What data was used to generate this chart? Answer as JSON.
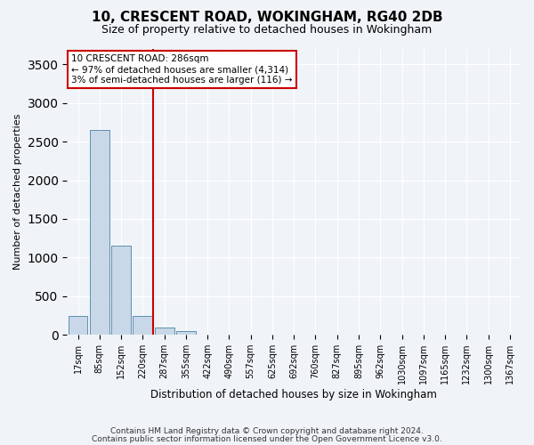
{
  "title_line1": "10, CRESCENT ROAD, WOKINGHAM, RG40 2DB",
  "title_line2": "Size of property relative to detached houses in Wokingham",
  "xlabel": "Distribution of detached houses by size in Wokingham",
  "ylabel": "Number of detached properties",
  "bin_labels": [
    "17sqm",
    "85sqm",
    "152sqm",
    "220sqm",
    "287sqm",
    "355sqm",
    "422sqm",
    "490sqm",
    "557sqm",
    "625sqm",
    "692sqm",
    "760sqm",
    "827sqm",
    "895sqm",
    "962sqm",
    "1030sqm",
    "1097sqm",
    "1165sqm",
    "1232sqm",
    "1300sqm",
    "1367sqm"
  ],
  "bar_heights": [
    250,
    2650,
    1150,
    250,
    100,
    50,
    5,
    0,
    0,
    0,
    0,
    0,
    0,
    0,
    0,
    0,
    0,
    0,
    0,
    0,
    0
  ],
  "bar_color": "#c8d8e8",
  "bar_edge_color": "#6090b0",
  "property_line_bin": 4,
  "property_line_color": "#cc0000",
  "annotation_text": "10 CRESCENT ROAD: 286sqm\n← 97% of detached houses are smaller (4,314)\n3% of semi-detached houses are larger (116) →",
  "annotation_box_color": "#cc0000",
  "ylim": [
    0,
    3700
  ],
  "yticks": [
    0,
    500,
    1000,
    1500,
    2000,
    2500,
    3000,
    3500
  ],
  "footer_line1": "Contains HM Land Registry data © Crown copyright and database right 2024.",
  "footer_line2": "Contains public sector information licensed under the Open Government Licence v3.0.",
  "bg_color": "#f0f4f8",
  "plot_bg_color": "#f0f4f8",
  "grid_color": "#ffffff"
}
